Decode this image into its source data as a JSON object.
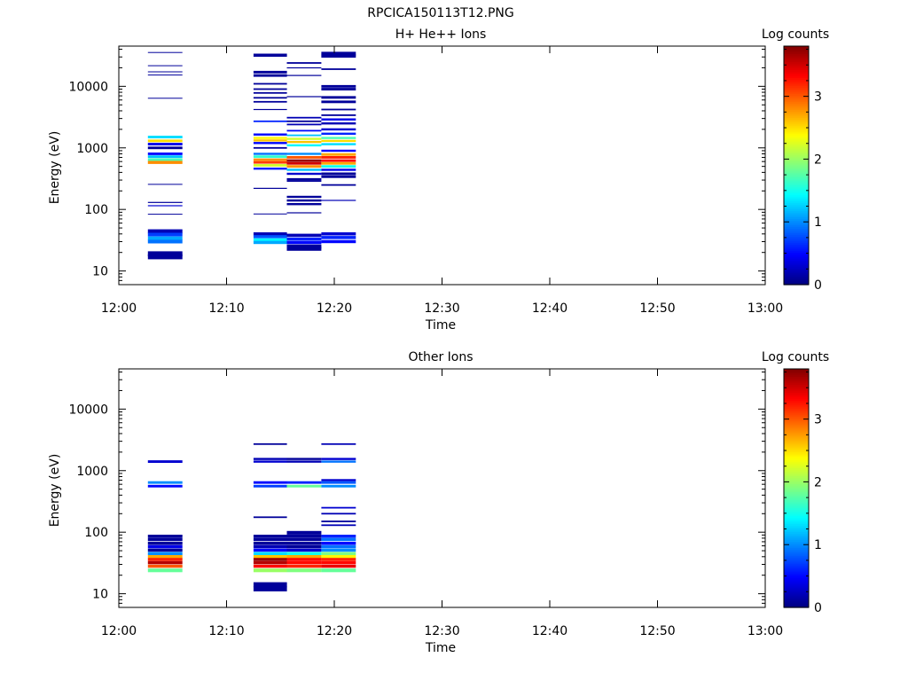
{
  "figure": {
    "title": "RPCICA150113T12.PNG"
  },
  "panels": [
    {
      "title": "H+ He++ Ions",
      "xlabel": "Time",
      "ylabel": "Energy (eV)",
      "colorbar_label": "Log counts"
    },
    {
      "title": "Other Ions",
      "xlabel": "Time",
      "ylabel": "Energy (eV)",
      "colorbar_label": "Log counts"
    }
  ],
  "colorbar": {
    "ticks": [
      "0",
      "1",
      "2",
      "3"
    ],
    "range": [
      0,
      3.8
    ],
    "colormap": "jet"
  },
  "chart_data": [
    {
      "type": "heatmap",
      "title": "H+ He++ Ions",
      "xlabel": "Time",
      "ylabel": "Energy (eV)",
      "x_tick_labels": [
        "12:00",
        "12:10",
        "12:20",
        "12:30",
        "12:40",
        "12:50",
        "13:00"
      ],
      "xlim_minutes": [
        0,
        60
      ],
      "y_scale": "log",
      "ylim": [
        6,
        45000
      ],
      "y_tick_labels": [
        "10",
        "100",
        "1000",
        "10000"
      ],
      "colorbar_label": "Log counts",
      "color_range": [
        0,
        3.8
      ],
      "columns": [
        {
          "t_start": 2.7,
          "t_end": 5.9,
          "bins": [
            [
              36000,
              1.0,
              0.1
            ],
            [
              22000,
              1.0,
              0.1
            ],
            [
              17500,
              1.0,
              0.1
            ],
            [
              15500,
              1.0,
              0.1
            ],
            [
              6500,
              1.0,
              0.1
            ],
            [
              1500,
              1.05,
              1.3
            ],
            [
              1300,
              1.05,
              2.5
            ],
            [
              1150,
              1.05,
              0.4
            ],
            [
              1000,
              1.05,
              0.1
            ],
            [
              800,
              1.05,
              0.5
            ],
            [
              720,
              1.05,
              1.2
            ],
            [
              640,
              1.06,
              1.7
            ],
            [
              580,
              1.06,
              2.8
            ],
            [
              260,
              1.0,
              0.1
            ],
            [
              130,
              1.02,
              0.1
            ],
            [
              115,
              1.02,
              0.3
            ],
            [
              85,
              1.0,
              0.1
            ],
            [
              44,
              1.08,
              0.2
            ],
            [
              39,
              1.07,
              0.7
            ],
            [
              34,
              1.07,
              1.1
            ],
            [
              30,
              1.07,
              0.9
            ],
            [
              19,
              1.1,
              0.1
            ],
            [
              17,
              1.1,
              0.1
            ]
          ]
        },
        {
          "t_start": 12.5,
          "t_end": 15.6,
          "bins": [
            [
              32000,
              1.06,
              0.1
            ],
            [
              17000,
              1.05,
              0.1
            ],
            [
              15000,
              1.05,
              0.1
            ],
            [
              11000,
              1.03,
              0.1
            ],
            [
              9000,
              1.03,
              0.1
            ],
            [
              7800,
              1.03,
              0.1
            ],
            [
              6500,
              1.03,
              0.1
            ],
            [
              5600,
              1.03,
              0.1
            ],
            [
              4200,
              1.02,
              0.1
            ],
            [
              2700,
              1.03,
              0.6
            ],
            [
              1650,
              1.04,
              0.5
            ],
            [
              1450,
              1.04,
              2.4
            ],
            [
              1320,
              1.04,
              2.6
            ],
            [
              1200,
              1.04,
              0.5
            ],
            [
              1000,
              1.03,
              0.1
            ],
            [
              800,
              1.04,
              0.9
            ],
            [
              720,
              1.05,
              1.6
            ],
            [
              640,
              1.05,
              2.8
            ],
            [
              580,
              1.05,
              3.1
            ],
            [
              520,
              1.05,
              2.2
            ],
            [
              460,
              1.04,
              0.6
            ],
            [
              220,
              1.02,
              0.1
            ],
            [
              85,
              1.01,
              0.1
            ],
            [
              40,
              1.06,
              0.2
            ],
            [
              36,
              1.06,
              0.8
            ],
            [
              32,
              1.06,
              1.4
            ],
            [
              29,
              1.06,
              1.1
            ]
          ]
        },
        {
          "t_start": 15.6,
          "t_end": 18.8,
          "bins": [
            [
              24000,
              1.03,
              0.1
            ],
            [
              20000,
              1.02,
              0.1
            ],
            [
              15000,
              1.02,
              0.1
            ],
            [
              6800,
              1.02,
              0.1
            ],
            [
              3100,
              1.03,
              0.2
            ],
            [
              2700,
              1.03,
              0.1
            ],
            [
              2400,
              1.03,
              0.2
            ],
            [
              1900,
              1.03,
              0.5
            ],
            [
              1600,
              1.03,
              1.2
            ],
            [
              1400,
              1.04,
              2.2
            ],
            [
              1250,
              1.04,
              2.6
            ],
            [
              1100,
              1.04,
              1.4
            ],
            [
              800,
              1.04,
              1.0
            ],
            [
              700,
              1.05,
              3.0
            ],
            [
              620,
              1.05,
              3.7
            ],
            [
              560,
              1.05,
              3.5
            ],
            [
              500,
              1.05,
              2.8
            ],
            [
              440,
              1.04,
              1.2
            ],
            [
              380,
              1.04,
              0.3
            ],
            [
              310,
              1.04,
              0.1
            ],
            [
              290,
              1.03,
              0.1
            ],
            [
              160,
              1.04,
              0.1
            ],
            [
              140,
              1.04,
              0.1
            ],
            [
              122,
              1.04,
              0.1
            ],
            [
              88,
              1.02,
              0.1
            ],
            [
              38,
              1.06,
              0.2
            ],
            [
              33,
              1.06,
              0.6
            ],
            [
              29,
              1.06,
              0.5
            ],
            [
              25,
              1.08,
              0.1
            ],
            [
              23,
              1.08,
              0.1
            ]
          ]
        },
        {
          "t_start": 18.8,
          "t_end": 22.0,
          "bins": [
            [
              34000,
              1.07,
              0.1
            ],
            [
              31000,
              1.06,
              0.1
            ],
            [
              19000,
              1.03,
              0.1
            ],
            [
              10000,
              1.05,
              0.1
            ],
            [
              9000,
              1.05,
              0.1
            ],
            [
              6600,
              1.05,
              0.1
            ],
            [
              5600,
              1.05,
              0.1
            ],
            [
              4200,
              1.03,
              0.1
            ],
            [
              3400,
              1.03,
              0.1
            ],
            [
              2900,
              1.04,
              0.4
            ],
            [
              2500,
              1.04,
              0.2
            ],
            [
              2000,
              1.04,
              0.3
            ],
            [
              1700,
              1.04,
              0.6
            ],
            [
              1450,
              1.04,
              1.7
            ],
            [
              1300,
              1.04,
              2.5
            ],
            [
              1150,
              1.04,
              1.3
            ],
            [
              900,
              1.04,
              0.5
            ],
            [
              780,
              1.05,
              2.7
            ],
            [
              700,
              1.05,
              3.2
            ],
            [
              620,
              1.05,
              3.3
            ],
            [
              560,
              1.05,
              2.7
            ],
            [
              500,
              1.05,
              1.5
            ],
            [
              440,
              1.04,
              0.4
            ],
            [
              380,
              1.05,
              0.1
            ],
            [
              340,
              1.05,
              0.1
            ],
            [
              250,
              1.03,
              0.1
            ],
            [
              140,
              1.02,
              0.2
            ],
            [
              40,
              1.06,
              0.3
            ],
            [
              35,
              1.06,
              0.6
            ],
            [
              30,
              1.06,
              0.5
            ]
          ]
        }
      ]
    },
    {
      "type": "heatmap",
      "title": "Other Ions",
      "xlabel": "Time",
      "ylabel": "Energy (eV)",
      "x_tick_labels": [
        "12:00",
        "12:10",
        "12:20",
        "12:30",
        "12:40",
        "12:50",
        "13:00"
      ],
      "xlim_minutes": [
        0,
        60
      ],
      "y_scale": "log",
      "ylim": [
        6,
        45000
      ],
      "y_tick_labels": [
        "10",
        "100",
        "1000",
        "10000"
      ],
      "colorbar_label": "Log counts",
      "color_range": [
        0,
        3.8
      ],
      "columns": [
        {
          "t_start": 2.7,
          "t_end": 5.9,
          "bins": [
            [
              1400,
              1.05,
              0.3
            ],
            [
              640,
              1.05,
              1.0
            ],
            [
              560,
              1.05,
              0.5
            ],
            [
              86,
              1.06,
              0.1
            ],
            [
              76,
              1.06,
              0.1
            ],
            [
              66,
              1.06,
              0.1
            ],
            [
              58,
              1.06,
              0.4
            ],
            [
              51,
              1.06,
              0.1
            ],
            [
              45,
              1.06,
              1.0
            ],
            [
              40,
              1.06,
              2.7
            ],
            [
              36,
              1.06,
              3.2
            ],
            [
              32,
              1.06,
              3.6
            ],
            [
              28,
              1.06,
              3.0
            ],
            [
              24,
              1.07,
              1.8
            ]
          ]
        },
        {
          "t_start": 12.5,
          "t_end": 15.6,
          "bins": [
            [
              2700,
              1.03,
              0.1
            ],
            [
              1550,
              1.04,
              0.2
            ],
            [
              1400,
              1.04,
              0.3
            ],
            [
              640,
              1.05,
              0.5
            ],
            [
              560,
              1.05,
              0.7
            ],
            [
              175,
              1.03,
              0.1
            ],
            [
              86,
              1.06,
              0.1
            ],
            [
              76,
              1.06,
              0.1
            ],
            [
              66,
              1.06,
              0.1
            ],
            [
              58,
              1.06,
              0.2
            ],
            [
              51,
              1.06,
              0.5
            ],
            [
              45,
              1.06,
              1.3
            ],
            [
              40,
              1.06,
              2.6
            ],
            [
              36,
              1.06,
              3.7
            ],
            [
              32,
              1.06,
              3.6
            ],
            [
              28,
              1.06,
              3.3
            ],
            [
              24,
              1.07,
              2.0
            ],
            [
              14,
              1.1,
              0.1
            ],
            [
              12,
              1.1,
              0.1
            ]
          ]
        },
        {
          "t_start": 15.6,
          "t_end": 18.8,
          "bins": [
            [
              1550,
              1.04,
              0.1
            ],
            [
              1400,
              1.04,
              0.2
            ],
            [
              640,
              1.05,
              0.6
            ],
            [
              560,
              1.05,
              1.8
            ],
            [
              98,
              1.07,
              0.1
            ],
            [
              86,
              1.06,
              0.1
            ],
            [
              76,
              1.06,
              0.1
            ],
            [
              66,
              1.06,
              0.1
            ],
            [
              58,
              1.06,
              0.1
            ],
            [
              51,
              1.06,
              0.3
            ],
            [
              45,
              1.06,
              1.5
            ],
            [
              40,
              1.06,
              2.7
            ],
            [
              36,
              1.06,
              3.3
            ],
            [
              32,
              1.06,
              3.3
            ],
            [
              28,
              1.06,
              3.2
            ],
            [
              24,
              1.07,
              1.9
            ]
          ]
        },
        {
          "t_start": 18.8,
          "t_end": 22.0,
          "bins": [
            [
              2700,
              1.03,
              0.2
            ],
            [
              1550,
              1.04,
              0.3
            ],
            [
              1400,
              1.04,
              0.9
            ],
            [
              700,
              1.04,
              0.3
            ],
            [
              640,
              1.05,
              0.8
            ],
            [
              560,
              1.05,
              1.0
            ],
            [
              250,
              1.03,
              0.3
            ],
            [
              200,
              1.03,
              0.2
            ],
            [
              150,
              1.03,
              0.1
            ],
            [
              130,
              1.03,
              0.2
            ],
            [
              86,
              1.06,
              0.6
            ],
            [
              76,
              1.06,
              0.9
            ],
            [
              66,
              1.06,
              0.5
            ],
            [
              58,
              1.06,
              0.9
            ],
            [
              51,
              1.06,
              1.0
            ],
            [
              45,
              1.06,
              1.9
            ],
            [
              40,
              1.06,
              2.4
            ],
            [
              36,
              1.06,
              3.2
            ],
            [
              32,
              1.06,
              3.3
            ],
            [
              28,
              1.06,
              3.4
            ],
            [
              24,
              1.07,
              1.8
            ]
          ]
        }
      ]
    }
  ]
}
